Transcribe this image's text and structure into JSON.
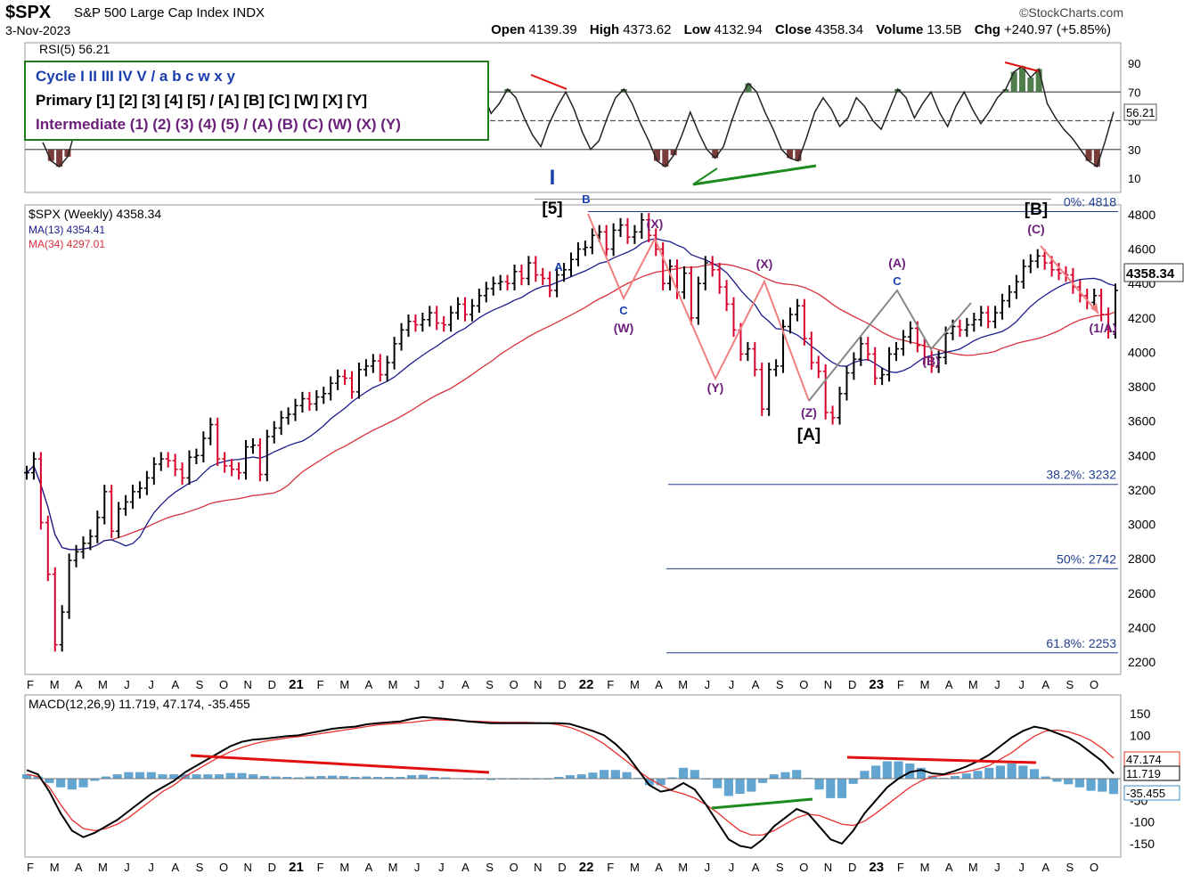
{
  "header": {
    "symbol": "$SPX",
    "description": "S&P 500 Large Cap Index",
    "exchange": "INDX",
    "date": "3-Nov-2023",
    "brand": "©StockCharts.com",
    "open_label": "Open",
    "open": "4139.39",
    "high_label": "High",
    "high": "4373.62",
    "low_label": "Low",
    "low": "4132.94",
    "close_label": "Close",
    "close": "4358.34",
    "volume_label": "Volume",
    "volume": "13.5B",
    "chg_label": "Chg",
    "chg": "+240.97 (+5.85%)"
  },
  "wave_legend": {
    "cycle": "Cycle I II III IV V / a b c w x y",
    "primary": "Primary [1] [2] [3] [4] [5] / [A] [B] [C] [W] [X] [Y]",
    "intermediate": "Intermediate (1) (2) (3) (4) (5) / (A) (B) (C) (W) (X) (Y)"
  },
  "colors": {
    "price_up": "#000000",
    "price_down": "#d7002b",
    "ma13": "#1c1c8c",
    "ma34": "#d8303c",
    "rsi_line": "#222222",
    "rsi_fill_over": "#4f7d4c",
    "rsi_fill_under": "#7a3b3b",
    "macd_line": "#000000",
    "signal_line": "#e8322e",
    "histogram": "#3b8fc4",
    "cycle_blue": "#1a3fb0",
    "primary_black": "#000000",
    "intermediate_purple": "#6b1f7a",
    "divergence_red": "#e01010",
    "divergence_green": "#1d8a1d",
    "fib_line": "#1f3f8f"
  },
  "chart_data": [
    {
      "type": "line",
      "panel": "RSI",
      "title": "RSI(5) 56.21",
      "legend": "RSI(5) 56.21",
      "ylim": [
        0,
        100
      ],
      "yticks": [
        "90",
        "70",
        "50",
        "30",
        "10"
      ],
      "reference_lines": [
        70,
        50,
        30
      ],
      "current_value": "56.21",
      "series": [
        {
          "name": "RSI(5)",
          "values": [
            35,
            22,
            18,
            25,
            45,
            60,
            65,
            62,
            70,
            58,
            55,
            68,
            72,
            60,
            55,
            48,
            52,
            60,
            66,
            58,
            52,
            48,
            56,
            62,
            70,
            64,
            58,
            52,
            50,
            58,
            66,
            72,
            60,
            54,
            48,
            56,
            64,
            68,
            60,
            55,
            52,
            58,
            65,
            70,
            62,
            55,
            50,
            60,
            68,
            74,
            80,
            88,
            82,
            70,
            55,
            62,
            72,
            66,
            52,
            40,
            32,
            48,
            60,
            70,
            58,
            42,
            30,
            36,
            52,
            66,
            72,
            62,
            48,
            36,
            22,
            18,
            26,
            40,
            56,
            42,
            30,
            24,
            32,
            50,
            66,
            76,
            70,
            56,
            44,
            30,
            24,
            22,
            38,
            56,
            66,
            58,
            46,
            52,
            66,
            60,
            50,
            44,
            58,
            72,
            66,
            52,
            62,
            70,
            56,
            46,
            60,
            70,
            58,
            48,
            56,
            66,
            72,
            84,
            88,
            80,
            86,
            62,
            52,
            44,
            38,
            30,
            22,
            18,
            36,
            56.21
          ]
        }
      ]
    },
    {
      "type": "line",
      "panel": "Price",
      "title": "$SPX (Weekly) 4358.34",
      "legend_items": [
        "$SPX (Weekly) 4358.34",
        "MA(13) 4354.41",
        "MA(34) 4297.01"
      ],
      "ylim": [
        2100,
        4900
      ],
      "yticks": [
        "4800",
        "4600",
        "4400",
        "4200",
        "4000",
        "3800",
        "3600",
        "3400",
        "3200",
        "3000",
        "2800",
        "2600",
        "2400",
        "2200"
      ],
      "xlabels": [
        "F",
        "M",
        "A",
        "M",
        "J",
        "J",
        "A",
        "S",
        "O",
        "N",
        "D",
        "21",
        "F",
        "M",
        "A",
        "M",
        "J",
        "J",
        "A",
        "S",
        "O",
        "N",
        "D",
        "22",
        "F",
        "M",
        "A",
        "M",
        "J",
        "J",
        "A",
        "S",
        "O",
        "N",
        "D",
        "23",
        "F",
        "M",
        "A",
        "M",
        "J",
        "J",
        "A",
        "S",
        "O"
      ],
      "price_box": "4358.34",
      "series": [
        {
          "name": "$SPX (Weekly)",
          "values": [
            3300,
            3380,
            3010,
            2710,
            2300,
            2490,
            2790,
            2840,
            2890,
            2930,
            3040,
            3190,
            2960,
            3090,
            3130,
            3190,
            3210,
            3270,
            3350,
            3380,
            3370,
            3320,
            3270,
            3390,
            3400,
            3500,
            3580,
            3380,
            3340,
            3320,
            3300,
            3450,
            3460,
            3290,
            3510,
            3560,
            3620,
            3640,
            3690,
            3730,
            3700,
            3740,
            3760,
            3820,
            3860,
            3850,
            3770,
            3900,
            3920,
            3950,
            3870,
            3940,
            4050,
            4130,
            4180,
            4160,
            4190,
            4230,
            4170,
            4160,
            4230,
            4280,
            4220,
            4270,
            4330,
            4370,
            4400,
            4410,
            4400,
            4470,
            4430,
            4520,
            4450,
            4430,
            4360,
            4450,
            4480,
            4540,
            4600,
            4610,
            4680,
            4700,
            4600,
            4710,
            4740,
            4670,
            4700,
            4770,
            4680,
            4600,
            4400,
            4500,
            4350,
            4460,
            4200,
            4400,
            4520,
            4480,
            4380,
            4280,
            4130,
            3990,
            4020,
            3900,
            3670,
            3900,
            3920,
            4150,
            4220,
            4270,
            4080,
            3940,
            3890,
            3650,
            3620,
            3760,
            3880,
            3960,
            4050,
            3990,
            3850,
            3870,
            3990,
            4020,
            4090,
            4140,
            4040,
            3970,
            3920,
            3970,
            4110,
            4150,
            4130,
            4160,
            4190,
            4230,
            4180,
            4230,
            4300,
            4350,
            4410,
            4500,
            4530,
            4560,
            4520,
            4480,
            4460,
            4450,
            4380,
            4330,
            4290,
            4330,
            4220,
            4120,
            4360
          ]
        },
        {
          "name": "MA(13)",
          "values": "computed"
        },
        {
          "name": "MA(34)",
          "values": "computed"
        }
      ],
      "annotations": [
        "I",
        "[5]",
        "A",
        "B",
        "C",
        "(W)",
        "(X)",
        "(Y)",
        "(X)",
        "(Z)",
        "[A]",
        "(A)",
        "C",
        "(B)",
        "[B]",
        "(C)",
        "(1/A)"
      ],
      "fib_levels": [
        "0%: 4818",
        "38.2%: 3232",
        "50%: 2742",
        "61.8%: 2253"
      ]
    },
    {
      "type": "line",
      "panel": "MACD",
      "title": "MACD(12,26,9) 11.719, 47.174, -35.455",
      "legend": "MACD(12,26,9) 11.719, 47.174, -35.455",
      "ylim": [
        -180,
        170
      ],
      "yticks": [
        "150",
        "100",
        "50",
        "0",
        "-50",
        "-100",
        "-150"
      ],
      "value_boxes": [
        "47.174",
        "11.719",
        "-35.455"
      ],
      "series": [
        {
          "name": "MACD",
          "values": [
            20,
            10,
            -30,
            -80,
            -120,
            -135,
            -125,
            -110,
            -95,
            -75,
            -55,
            -35,
            -20,
            -5,
            15,
            30,
            45,
            60,
            75,
            85,
            90,
            92,
            95,
            98,
            100,
            105,
            110,
            115,
            118,
            120,
            125,
            128,
            130,
            132,
            138,
            142,
            140,
            138,
            135,
            132,
            130,
            128,
            128,
            128,
            128,
            128,
            128,
            128,
            126,
            118,
            110,
            100,
            80,
            55,
            20,
            -15,
            -30,
            -25,
            -10,
            -25,
            -60,
            -100,
            -140,
            -155,
            -160,
            -140,
            -110,
            -90,
            -70,
            -80,
            -110,
            -140,
            -150,
            -120,
            -80,
            -50,
            -20,
            0,
            15,
            20,
            12,
            10,
            18,
            28,
            40,
            55,
            75,
            95,
            110,
            120,
            115,
            105,
            95,
            80,
            60,
            40,
            11.719
          ]
        },
        {
          "name": "Signal",
          "values": [
            10,
            5,
            -20,
            -60,
            -95,
            -115,
            -120,
            -115,
            -105,
            -90,
            -70,
            -50,
            -30,
            -15,
            5,
            20,
            35,
            50,
            62,
            72,
            80,
            86,
            90,
            94,
            97,
            100,
            104,
            108,
            112,
            116,
            120,
            124,
            126,
            128,
            130,
            133,
            136,
            135,
            134,
            133,
            132,
            131,
            130,
            130,
            130,
            129,
            128,
            124,
            118,
            108,
            96,
            80,
            60,
            40,
            18,
            0,
            -15,
            -28,
            -35,
            -45,
            -60,
            -78,
            -100,
            -120,
            -130,
            -130,
            -120,
            -105,
            -90,
            -82,
            -85,
            -95,
            -105,
            -108,
            -98,
            -80,
            -60,
            -40,
            -20,
            -5,
            5,
            8,
            12,
            16,
            22,
            30,
            45,
            60,
            80,
            98,
            110,
            112,
            108,
            100,
            88,
            70,
            47.174
          ]
        },
        {
          "name": "Histogram",
          "values": [
            10,
            5,
            -10,
            -20,
            -25,
            -20,
            -5,
            5,
            10,
            15,
            15,
            15,
            10,
            10,
            10,
            10,
            10,
            10,
            13,
            13,
            10,
            6,
            5,
            4,
            3,
            5,
            6,
            7,
            6,
            4,
            5,
            4,
            4,
            4,
            8,
            9,
            4,
            3,
            1,
            -1,
            -2,
            -3,
            -2,
            -2,
            -2,
            -1,
            0,
            4,
            8,
            10,
            14,
            20,
            20,
            15,
            2,
            -15,
            -15,
            3,
            25,
            20,
            0,
            -22,
            -40,
            -35,
            -30,
            -10,
            10,
            15,
            20,
            2,
            -25,
            -45,
            -45,
            -12,
            18,
            30,
            40,
            40,
            35,
            25,
            7,
            2,
            6,
            12,
            18,
            25,
            30,
            35,
            30,
            22,
            5,
            -7,
            -13,
            -20,
            -28,
            -30,
            -35.455
          ]
        }
      ]
    }
  ]
}
